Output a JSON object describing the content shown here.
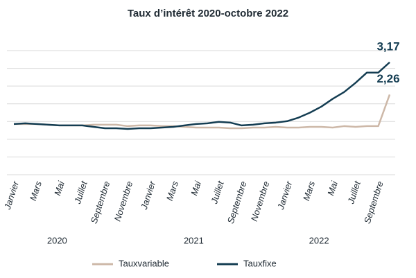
{
  "chart_data": {
    "type": "line",
    "title": "Taux d’intérêt 2020-octobre 2022",
    "categories": [
      "Janvier",
      null,
      "Mars",
      null,
      "Mai",
      null,
      "Juillet",
      null,
      "Septembre",
      null,
      "Novembre",
      null,
      "Janvier",
      null,
      "Mars",
      null,
      "Mai",
      null,
      "Juillet",
      null,
      "Septembre",
      null,
      "Novembre",
      null,
      "Janvier",
      null,
      "Mars",
      null,
      "Mai",
      null,
      "Juillet",
      null,
      "Septembre",
      null
    ],
    "years": [
      "2020",
      "2021",
      "2022"
    ],
    "series": [
      {
        "name": "Tauxvariable",
        "color": "#cdb8a8",
        "values": [
          1.43,
          1.43,
          1.43,
          1.41,
          1.39,
          1.39,
          1.39,
          1.41,
          1.41,
          1.41,
          1.37,
          1.39,
          1.39,
          1.37,
          1.37,
          1.35,
          1.33,
          1.33,
          1.33,
          1.31,
          1.31,
          1.33,
          1.33,
          1.35,
          1.33,
          1.33,
          1.35,
          1.35,
          1.33,
          1.37,
          1.35,
          1.37,
          1.37,
          2.26
        ],
        "value_labels": [
          null,
          null,
          null,
          null,
          null,
          null,
          null,
          null,
          null,
          null,
          null,
          null,
          null,
          null,
          null,
          null,
          null,
          null,
          null,
          null,
          null,
          null,
          null,
          null,
          null,
          null,
          null,
          null,
          null,
          null,
          null,
          null,
          null,
          "2,26"
        ]
      },
      {
        "name": "Tauxfixe",
        "color": "#143d52",
        "values": [
          1.43,
          1.45,
          1.43,
          1.41,
          1.39,
          1.39,
          1.39,
          1.35,
          1.31,
          1.31,
          1.29,
          1.31,
          1.31,
          1.33,
          1.35,
          1.39,
          1.43,
          1.45,
          1.49,
          1.47,
          1.39,
          1.41,
          1.45,
          1.47,
          1.51,
          1.61,
          1.75,
          1.92,
          2.14,
          2.33,
          2.59,
          2.88,
          2.88,
          3.17
        ],
        "value_labels": [
          null,
          null,
          null,
          null,
          null,
          null,
          null,
          null,
          null,
          null,
          null,
          null,
          null,
          null,
          null,
          null,
          null,
          null,
          null,
          null,
          null,
          null,
          null,
          null,
          null,
          null,
          null,
          null,
          null,
          null,
          null,
          null,
          null,
          "3,17"
        ]
      }
    ],
    "ylim": [
      0,
      3.5
    ],
    "yticks": [
      0,
      0.5,
      1,
      1.5,
      2,
      2.5,
      3,
      3.5
    ],
    "grid": true
  }
}
